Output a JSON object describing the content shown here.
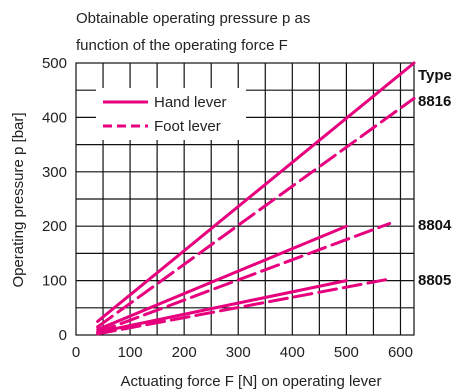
{
  "chart_data": {
    "type": "line",
    "title": [
      "Obtainable operating pressure p as",
      "function of the operating force F"
    ],
    "xlabel": "Actuating force F [N] on operating lever",
    "ylabel": "Operating pressure p [bar]",
    "xlim": [
      0,
      625
    ],
    "ylim": [
      0,
      500
    ],
    "xticks": [
      0,
      100,
      200,
      300,
      400,
      500,
      600
    ],
    "yticks": [
      0,
      100,
      200,
      300,
      400,
      500
    ],
    "grid": true,
    "color": "#e6007e",
    "legend": {
      "placement": "top-left",
      "entries": [
        {
          "label": "Hand lever",
          "style": "solid"
        },
        {
          "label": "Foot lever",
          "style": "dashed"
        }
      ]
    },
    "type_header": "Type",
    "series": [
      {
        "type_label": "8816",
        "lever": "Hand lever",
        "style": "solid",
        "x": [
          40,
          625
        ],
        "y": [
          25,
          500
        ]
      },
      {
        "type_label": "8816",
        "lever": "Foot lever",
        "style": "dashed",
        "x": [
          40,
          625
        ],
        "y": [
          15,
          435
        ]
      },
      {
        "type_label": "8804",
        "lever": "Hand lever",
        "style": "solid",
        "x": [
          40,
          500
        ],
        "y": [
          10,
          200
        ]
      },
      {
        "type_label": "8804",
        "lever": "Foot lever",
        "style": "dashed",
        "x": [
          40,
          580
        ],
        "y": [
          5,
          205
        ]
      },
      {
        "type_label": "8805",
        "lever": "Hand lever",
        "style": "solid",
        "x": [
          40,
          500
        ],
        "y": [
          5,
          100
        ]
      },
      {
        "type_label": "8805",
        "lever": "Foot lever",
        "style": "dashed",
        "x": [
          40,
          580
        ],
        "y": [
          2,
          103
        ]
      }
    ]
  }
}
